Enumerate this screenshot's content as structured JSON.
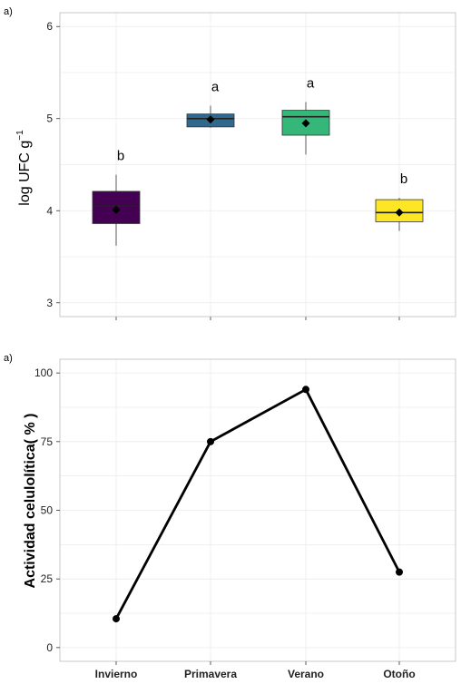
{
  "chart_data": [
    {
      "type": "box",
      "panel_label": "a)",
      "ylabel": "log UFC  g",
      "ylabel_superscript": "−1",
      "ylim": [
        2.85,
        6.15
      ],
      "yticks": [
        "3",
        "4",
        "5",
        "6"
      ],
      "ytick_values": [
        3,
        4,
        5,
        6
      ],
      "categories": [
        "Invierno",
        "Primavera",
        "Verano",
        "Otoño"
      ],
      "show_category_labels": false,
      "grid": true,
      "boxes": [
        {
          "category": "Invierno",
          "whisker_low": 3.62,
          "q1": 3.86,
          "median": 4.05,
          "q3": 4.21,
          "whisker_high": 4.39,
          "mean": 4.01,
          "color": "#440154",
          "letter": "b"
        },
        {
          "category": "Primavera",
          "whisker_low": 4.9,
          "q1": 4.91,
          "median": 5.0,
          "q3": 5.05,
          "whisker_high": 5.14,
          "mean": 4.99,
          "color": "#31688e",
          "letter": "a"
        },
        {
          "category": "Verano",
          "whisker_low": 4.61,
          "q1": 4.82,
          "median": 5.02,
          "q3": 5.09,
          "whisker_high": 5.18,
          "mean": 4.95,
          "color": "#35b779",
          "letter": "a"
        },
        {
          "category": "Otoño",
          "whisker_low": 3.78,
          "q1": 3.88,
          "median": 3.98,
          "q3": 4.12,
          "whisker_high": 4.14,
          "mean": 3.98,
          "color": "#fde725",
          "letter": "b"
        }
      ]
    },
    {
      "type": "line",
      "panel_label": "a)",
      "ylabel": "Actividad celulolítica( % )",
      "ylim": [
        -5,
        105
      ],
      "yticks": [
        "0",
        "25",
        "50",
        "75",
        "100"
      ],
      "ytick_values": [
        0,
        25,
        50,
        75,
        100
      ],
      "categories": [
        "Invierno",
        "Primavera",
        "Verano",
        "Otoño"
      ],
      "values": [
        10.5,
        75,
        94,
        27.5
      ],
      "grid": true
    }
  ]
}
